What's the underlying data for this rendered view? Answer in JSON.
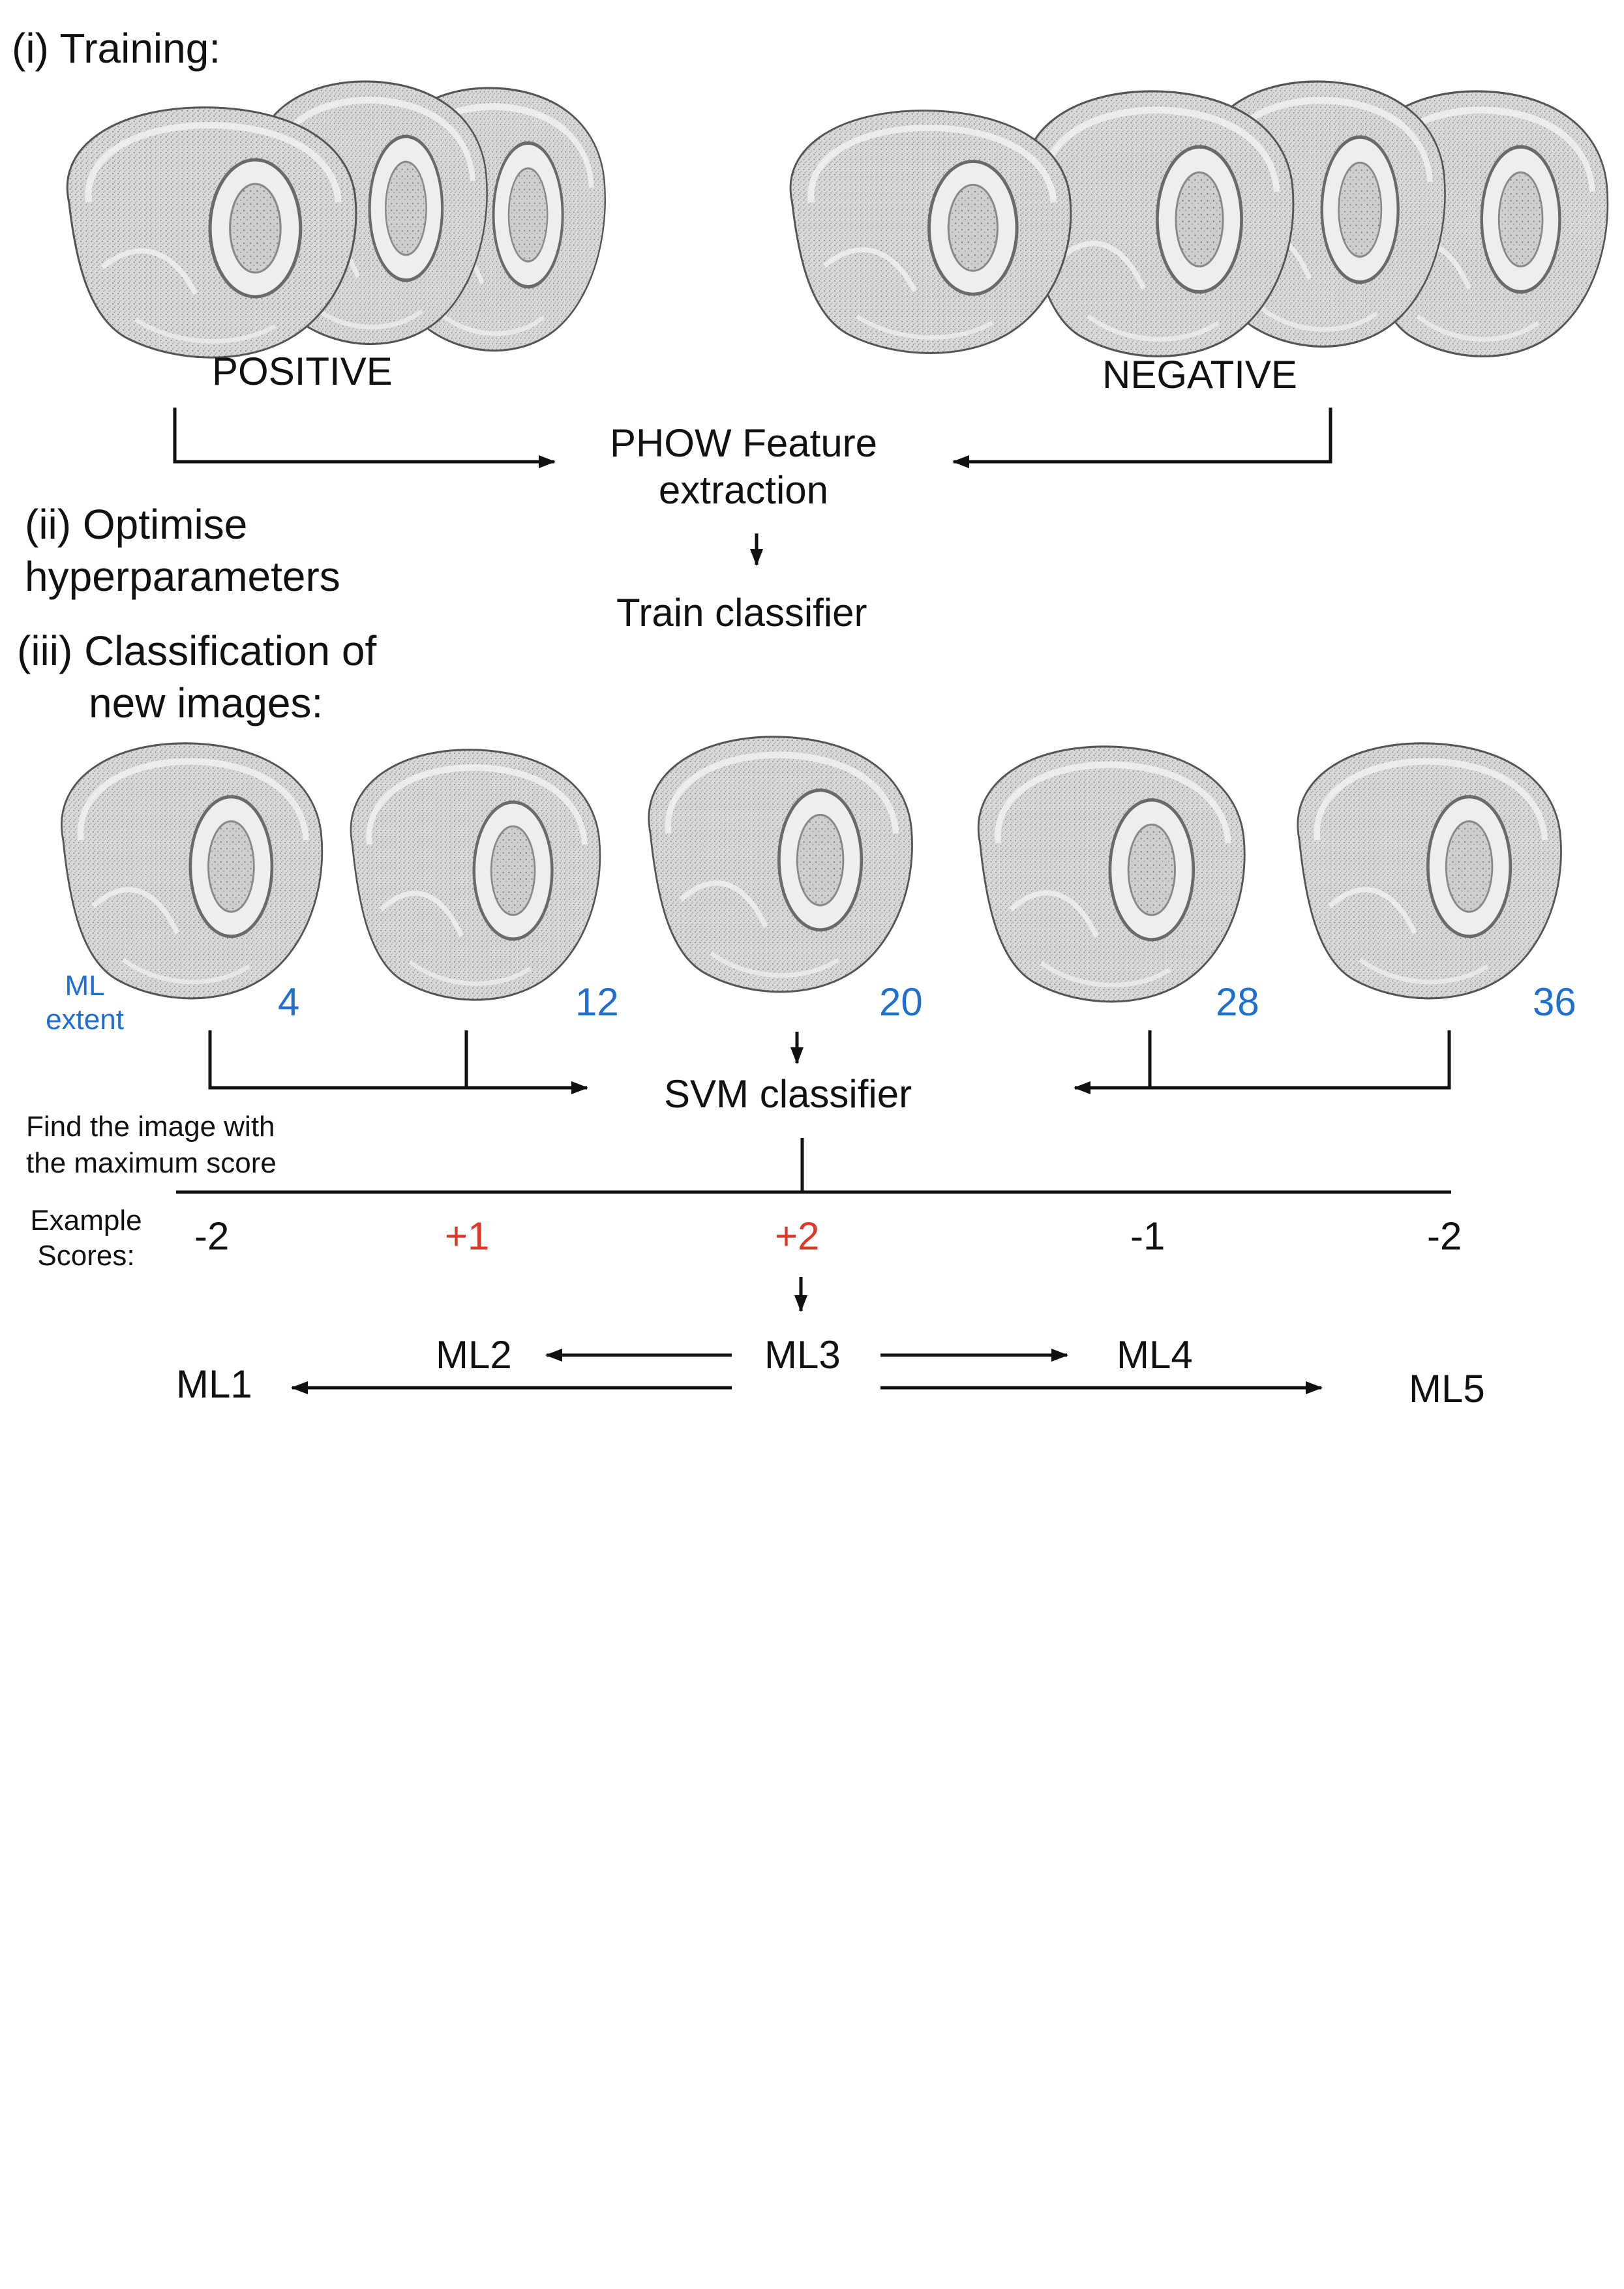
{
  "sections": {
    "training": "(i) Training:",
    "optimise_line1": "(ii) Optimise",
    "optimise_line2": "hyperparameters",
    "classification_line1": "(iii) Classification of",
    "classification_line2": "new images:"
  },
  "training": {
    "positive_label": "POSITIVE",
    "negative_label": "NEGATIVE",
    "feature_line1": "PHOW Feature",
    "feature_line2": "extraction",
    "train_label": "Train classifier"
  },
  "classification": {
    "ml_extent_line1": "ML",
    "ml_extent_line2": "extent",
    "extent_values": [
      "4",
      "12",
      "20",
      "28",
      "36"
    ],
    "svm_label": "SVM classifier",
    "find_line1": "Find the image with",
    "find_line2": "the maximum score",
    "example_line1": "Example",
    "example_line2": "Scores:",
    "scores": [
      "-2",
      "+1",
      "+2",
      "-1",
      "-2"
    ],
    "ml_labels": [
      "ML1",
      "ML2",
      "ML3",
      "ML4",
      "ML5"
    ]
  },
  "colors": {
    "blue": "#1f6fd1",
    "red": "#e0362a"
  }
}
